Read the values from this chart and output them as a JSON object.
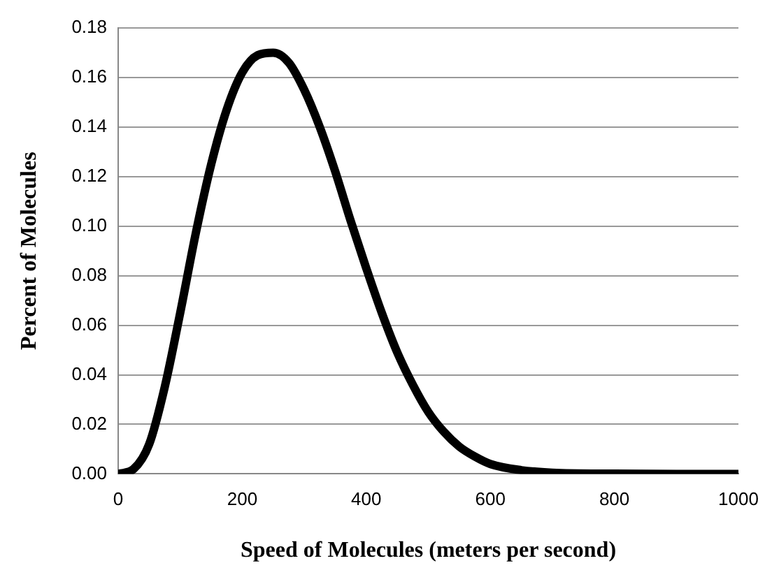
{
  "chart_data": {
    "type": "line",
    "xlabel": "Speed of Molecules (meters per second)",
    "ylabel": "Percent of Molecules",
    "x": [
      0,
      25,
      50,
      75,
      100,
      125,
      150,
      175,
      200,
      225,
      250,
      275,
      300,
      325,
      350,
      375,
      400,
      425,
      450,
      475,
      500,
      525,
      550,
      575,
      600,
      650,
      700,
      800,
      900,
      1000
    ],
    "series": [
      {
        "color": "#000000",
        "values": [
          0,
          0.002,
          0.012,
          0.035,
          0.065,
          0.097,
          0.125,
          0.147,
          0.162,
          0.169,
          0.17,
          0.166,
          0.155,
          0.14,
          0.122,
          0.102,
          0.083,
          0.065,
          0.049,
          0.036,
          0.025,
          0.017,
          0.011,
          0.007,
          0.004,
          0.0015,
          0.0005,
          0.0001,
          0,
          0
        ]
      }
    ],
    "xlim": [
      0,
      1000
    ],
    "xticks": [
      0,
      200,
      400,
      600,
      800,
      1000
    ],
    "ylim": [
      0,
      0.18
    ],
    "yticks": [
      {
        "value": 0,
        "label": "0.00"
      },
      {
        "value": 0.02,
        "label": "0.02"
      },
      {
        "value": 0.04,
        "label": "0.04"
      },
      {
        "value": 0.06,
        "label": "0.06"
      },
      {
        "value": 0.08,
        "label": "0.08"
      },
      {
        "value": 0.1,
        "label": "0.10"
      },
      {
        "value": 0.12,
        "label": "0.12"
      },
      {
        "value": 0.14,
        "label": "0.14"
      },
      {
        "value": 0.16,
        "label": "0.16"
      },
      {
        "value": 0.18,
        "label": "0.18"
      }
    ],
    "grid": "y",
    "legend": false,
    "marker": "none",
    "line_style": "solid"
  }
}
